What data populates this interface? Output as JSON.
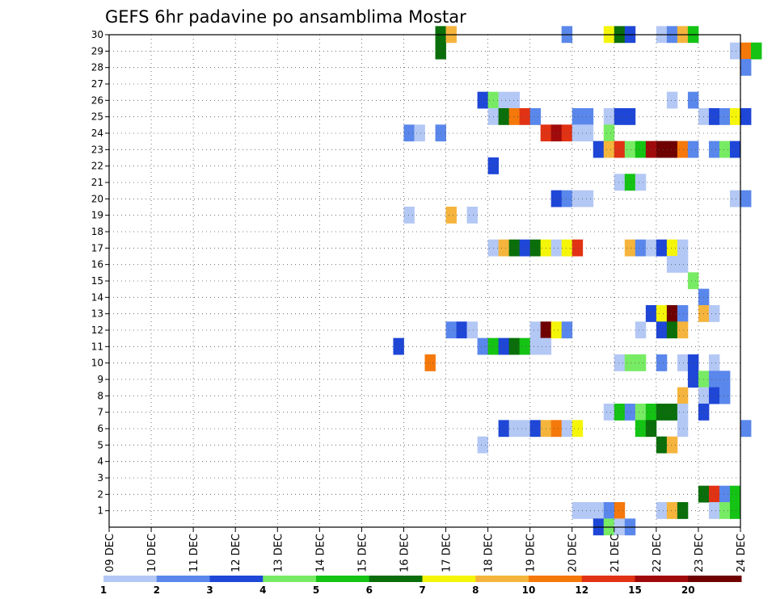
{
  "chart_data": {
    "type": "heatmap",
    "title": "GEFS 6hr padavine po ansamblima Mostar",
    "x_tick_labels": [
      "09 DEC",
      "10 DEC",
      "11 DEC",
      "12 DEC",
      "13 DEC",
      "14 DEC",
      "15 DEC",
      "16 DEC",
      "17 DEC",
      "18 DEC",
      "19 DEC",
      "20 DEC",
      "21 DEC",
      "22 DEC",
      "23 DEC",
      "24 DEC"
    ],
    "y_tick_labels": [
      "1",
      "2",
      "3",
      "4",
      "5",
      "6",
      "7",
      "8",
      "9",
      "10",
      "11",
      "12",
      "13",
      "14",
      "15",
      "16",
      "17",
      "18",
      "19",
      "20",
      "21",
      "22",
      "23",
      "24",
      "25",
      "26",
      "27",
      "28",
      "29",
      "30"
    ],
    "x_axis": {
      "start_day": 9,
      "end_day": 24,
      "steps_per_day": 4,
      "unit": "DEC"
    },
    "y_range": [
      0,
      30
    ],
    "grid": true,
    "colorbar": {
      "labels": [
        "1",
        "2",
        "3",
        "4",
        "5",
        "6",
        "7",
        "8",
        "10",
        "12",
        "15",
        "20"
      ],
      "colors": [
        "#b4c8f5",
        "#5a87eb",
        "#1e46d7",
        "#78eb64",
        "#14c314",
        "#0a6e0a",
        "#f5f50a",
        "#f5b43c",
        "#f5780a",
        "#e13214",
        "#a00a0a",
        "#6e0000"
      ]
    },
    "cells": [
      [
        30,
        16.75,
        5
      ],
      [
        30,
        17.0,
        7
      ],
      [
        30,
        19.75,
        1
      ],
      [
        30,
        20.75,
        6
      ],
      [
        30,
        21.0,
        5
      ],
      [
        30,
        21.25,
        2
      ],
      [
        30,
        22.0,
        0
      ],
      [
        30,
        22.25,
        1
      ],
      [
        30,
        22.5,
        7
      ],
      [
        30,
        22.75,
        4
      ],
      [
        29,
        16.75,
        5
      ],
      [
        29,
        23.75,
        0
      ],
      [
        29,
        24.0,
        8
      ],
      [
        29,
        24.25,
        4
      ],
      [
        28,
        24.0,
        1
      ],
      [
        26,
        17.75,
        2
      ],
      [
        26,
        18.0,
        3
      ],
      [
        26,
        18.25,
        0
      ],
      [
        26,
        18.5,
        0
      ],
      [
        26,
        22.25,
        0
      ],
      [
        26,
        22.75,
        1
      ],
      [
        25,
        18.0,
        0
      ],
      [
        25,
        18.25,
        5
      ],
      [
        25,
        18.5,
        8
      ],
      [
        25,
        18.75,
        9
      ],
      [
        25,
        19.0,
        1
      ],
      [
        25,
        20.0,
        1
      ],
      [
        25,
        20.25,
        1
      ],
      [
        25,
        20.75,
        0
      ],
      [
        25,
        21.0,
        2
      ],
      [
        25,
        21.25,
        2
      ],
      [
        25,
        23.0,
        0
      ],
      [
        25,
        23.25,
        2
      ],
      [
        25,
        23.5,
        1
      ],
      [
        25,
        23.75,
        6
      ],
      [
        25,
        24.0,
        2
      ],
      [
        24,
        16.0,
        1
      ],
      [
        24,
        16.25,
        0
      ],
      [
        24,
        16.75,
        1
      ],
      [
        24,
        19.25,
        9
      ],
      [
        24,
        19.5,
        10
      ],
      [
        24,
        19.75,
        9
      ],
      [
        24,
        20.0,
        0
      ],
      [
        24,
        20.25,
        0
      ],
      [
        24,
        20.75,
        3
      ],
      [
        23,
        20.5,
        2
      ],
      [
        23,
        20.75,
        7
      ],
      [
        23,
        21.0,
        9
      ],
      [
        23,
        21.25,
        3
      ],
      [
        23,
        21.5,
        4
      ],
      [
        23,
        21.75,
        10
      ],
      [
        23,
        22.0,
        11
      ],
      [
        23,
        22.25,
        11
      ],
      [
        23,
        22.5,
        8
      ],
      [
        23,
        22.75,
        1
      ],
      [
        23,
        23.25,
        1
      ],
      [
        23,
        23.5,
        3
      ],
      [
        23,
        23.75,
        2
      ],
      [
        22,
        18.0,
        2
      ],
      [
        21,
        21.0,
        0
      ],
      [
        21,
        21.25,
        4
      ],
      [
        21,
        21.5,
        0
      ],
      [
        20,
        19.5,
        2
      ],
      [
        20,
        19.75,
        1
      ],
      [
        20,
        20.0,
        0
      ],
      [
        20,
        20.25,
        0
      ],
      [
        20,
        23.75,
        0
      ],
      [
        20,
        24.0,
        1
      ],
      [
        19,
        16.0,
        0
      ],
      [
        19,
        17.0,
        7
      ],
      [
        19,
        17.5,
        0
      ],
      [
        17,
        18.0,
        0
      ],
      [
        17,
        18.25,
        7
      ],
      [
        17,
        18.5,
        5
      ],
      [
        17,
        18.75,
        2
      ],
      [
        17,
        19.0,
        5
      ],
      [
        17,
        19.25,
        6
      ],
      [
        17,
        19.5,
        0
      ],
      [
        17,
        19.75,
        6
      ],
      [
        17,
        20.0,
        9
      ],
      [
        17,
        21.25,
        7
      ],
      [
        17,
        21.5,
        1
      ],
      [
        17,
        21.75,
        0
      ],
      [
        17,
        22.0,
        2
      ],
      [
        17,
        22.25,
        6
      ],
      [
        17,
        22.5,
        0
      ],
      [
        16,
        22.25,
        0
      ],
      [
        16,
        22.5,
        0
      ],
      [
        15,
        22.75,
        3
      ],
      [
        14,
        23.0,
        1
      ],
      [
        13,
        21.75,
        2
      ],
      [
        13,
        22.0,
        6
      ],
      [
        13,
        22.25,
        11
      ],
      [
        13,
        22.5,
        1
      ],
      [
        13,
        23.0,
        7
      ],
      [
        13,
        23.25,
        0
      ],
      [
        12,
        17.0,
        1
      ],
      [
        12,
        17.25,
        2
      ],
      [
        12,
        17.5,
        0
      ],
      [
        12,
        19.0,
        0
      ],
      [
        12,
        19.25,
        11
      ],
      [
        12,
        19.5,
        6
      ],
      [
        12,
        19.75,
        1
      ],
      [
        12,
        21.5,
        0
      ],
      [
        12,
        22.0,
        2
      ],
      [
        12,
        22.25,
        5
      ],
      [
        12,
        22.5,
        7
      ],
      [
        11,
        15.75,
        2
      ],
      [
        11,
        17.75,
        1
      ],
      [
        11,
        18.0,
        4
      ],
      [
        11,
        18.25,
        2
      ],
      [
        11,
        18.5,
        5
      ],
      [
        11,
        18.75,
        4
      ],
      [
        11,
        19.0,
        0
      ],
      [
        11,
        19.25,
        0
      ],
      [
        10,
        16.5,
        8
      ],
      [
        10,
        21.0,
        0
      ],
      [
        10,
        21.25,
        3
      ],
      [
        10,
        21.5,
        3
      ],
      [
        10,
        22.0,
        1
      ],
      [
        10,
        22.5,
        0
      ],
      [
        10,
        22.75,
        2
      ],
      [
        10,
        23.25,
        0
      ],
      [
        9,
        22.75,
        2
      ],
      [
        9,
        23.0,
        3
      ],
      [
        9,
        23.25,
        1
      ],
      [
        9,
        23.5,
        1
      ],
      [
        8,
        22.5,
        7
      ],
      [
        8,
        23.0,
        0
      ],
      [
        8,
        23.25,
        2
      ],
      [
        8,
        23.5,
        1
      ],
      [
        7,
        20.75,
        0
      ],
      [
        7,
        21.0,
        4
      ],
      [
        7,
        21.25,
        1
      ],
      [
        7,
        21.5,
        3
      ],
      [
        7,
        21.75,
        4
      ],
      [
        7,
        22.0,
        5
      ],
      [
        7,
        22.25,
        5
      ],
      [
        7,
        22.5,
        0
      ],
      [
        7,
        23.0,
        2
      ],
      [
        6,
        18.25,
        2
      ],
      [
        6,
        18.5,
        0
      ],
      [
        6,
        18.75,
        0
      ],
      [
        6,
        19.0,
        2
      ],
      [
        6,
        19.25,
        7
      ],
      [
        6,
        19.5,
        8
      ],
      [
        6,
        19.75,
        0
      ],
      [
        6,
        20.0,
        6
      ],
      [
        6,
        21.5,
        4
      ],
      [
        6,
        21.75,
        5
      ],
      [
        6,
        22.5,
        0
      ],
      [
        6,
        24.0,
        1
      ],
      [
        5,
        17.75,
        0
      ],
      [
        5,
        22.0,
        5
      ],
      [
        5,
        22.25,
        7
      ],
      [
        2,
        23.0,
        5
      ],
      [
        2,
        23.25,
        9
      ],
      [
        2,
        23.5,
        1
      ],
      [
        2,
        23.75,
        4
      ],
      [
        1,
        20.0,
        0
      ],
      [
        1,
        20.25,
        0
      ],
      [
        1,
        20.5,
        0
      ],
      [
        1,
        20.75,
        1
      ],
      [
        1,
        21.0,
        8
      ],
      [
        1,
        22.0,
        0
      ],
      [
        1,
        22.25,
        7
      ],
      [
        1,
        22.5,
        5
      ],
      [
        1,
        23.25,
        0
      ],
      [
        1,
        23.5,
        3
      ],
      [
        1,
        23.75,
        4
      ],
      [
        0,
        20.5,
        2
      ],
      [
        0,
        20.75,
        3
      ],
      [
        0,
        21.0,
        0
      ],
      [
        0,
        21.25,
        1
      ]
    ]
  }
}
